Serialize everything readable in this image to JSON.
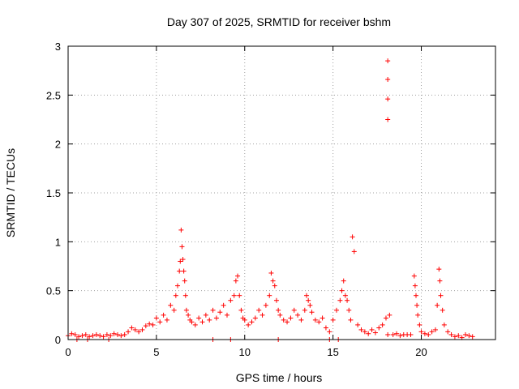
{
  "chart_data": {
    "type": "scatter",
    "title": "Day 307 of 2025, SRMTID for receiver bshm",
    "xlabel": "GPS time / hours",
    "ylabel": "SRMTID / TECUs",
    "xlim": [
      0,
      24.2
    ],
    "ylim": [
      0,
      3
    ],
    "grid": true,
    "marker": "+",
    "marker_color": "#ff0000",
    "x_ticks": [
      {
        "value": 0,
        "label": "0"
      },
      {
        "value": 5,
        "label": "5"
      },
      {
        "value": 10,
        "label": "10"
      },
      {
        "value": 15,
        "label": "15"
      },
      {
        "value": 20,
        "label": "20"
      }
    ],
    "y_ticks": [
      {
        "value": 0,
        "label": "0"
      },
      {
        "value": 0.5,
        "label": "0.5"
      },
      {
        "value": 1,
        "label": "1"
      },
      {
        "value": 1.5,
        "label": "1.5"
      },
      {
        "value": 2,
        "label": "2"
      },
      {
        "value": 2.5,
        "label": "2.5"
      },
      {
        "value": 3,
        "label": "3"
      }
    ],
    "series": [
      {
        "name": "bshm",
        "x": [
          0.0,
          0.2,
          0.4,
          0.6,
          0.8,
          1.0,
          1.2,
          1.4,
          1.6,
          1.8,
          2.0,
          2.2,
          2.4,
          2.6,
          2.8,
          3.0,
          3.2,
          3.4,
          3.6,
          3.8,
          4.0,
          4.2,
          4.4,
          4.6,
          4.8,
          5.0,
          5.2,
          5.4,
          5.6,
          5.8,
          6.0,
          6.1,
          6.2,
          6.3,
          6.35,
          6.4,
          6.45,
          6.5,
          6.55,
          6.6,
          6.65,
          6.7,
          6.8,
          6.9,
          7.0,
          7.2,
          7.4,
          7.6,
          7.8,
          8.0,
          8.2,
          8.4,
          8.6,
          8.8,
          9.0,
          9.2,
          9.4,
          9.5,
          9.6,
          9.7,
          9.8,
          9.9,
          10.0,
          10.2,
          10.4,
          10.6,
          10.8,
          11.0,
          11.2,
          11.4,
          11.5,
          11.6,
          11.7,
          11.8,
          11.9,
          12.0,
          12.2,
          12.4,
          12.6,
          12.8,
          13.0,
          13.2,
          13.4,
          13.5,
          13.6,
          13.7,
          13.8,
          14.0,
          14.2,
          14.4,
          14.6,
          14.8,
          15.0,
          15.2,
          15.4,
          15.5,
          15.6,
          15.7,
          15.8,
          15.9,
          16.0,
          16.1,
          16.2,
          16.4,
          16.6,
          16.8,
          17.0,
          17.2,
          17.4,
          17.6,
          17.8,
          18.0,
          18.1,
          18.2,
          18.1,
          18.1,
          18.1,
          18.1,
          18.4,
          18.6,
          18.8,
          19.0,
          19.2,
          19.4,
          19.6,
          19.65,
          19.7,
          19.75,
          19.8,
          19.9,
          20.0,
          20.2,
          20.4,
          20.6,
          20.8,
          20.9,
          21.0,
          21.05,
          21.1,
          21.2,
          21.3,
          21.5,
          21.7,
          21.9,
          22.1,
          22.3,
          22.5,
          22.7,
          22.9,
          0.5,
          1.1,
          2.3,
          8.2,
          9.2,
          11.9,
          14.8,
          15.3
        ],
        "y": [
          0.04,
          0.06,
          0.05,
          0.03,
          0.04,
          0.05,
          0.03,
          0.04,
          0.05,
          0.04,
          0.03,
          0.05,
          0.04,
          0.06,
          0.05,
          0.04,
          0.05,
          0.08,
          0.12,
          0.1,
          0.08,
          0.1,
          0.14,
          0.16,
          0.15,
          0.22,
          0.18,
          0.25,
          0.2,
          0.35,
          0.3,
          0.45,
          0.55,
          0.7,
          0.8,
          1.12,
          0.95,
          0.82,
          0.7,
          0.6,
          0.45,
          0.3,
          0.25,
          0.2,
          0.18,
          0.15,
          0.22,
          0.18,
          0.25,
          0.2,
          0.3,
          0.22,
          0.28,
          0.35,
          0.25,
          0.4,
          0.45,
          0.6,
          0.65,
          0.45,
          0.3,
          0.22,
          0.2,
          0.15,
          0.18,
          0.22,
          0.3,
          0.25,
          0.35,
          0.45,
          0.68,
          0.6,
          0.55,
          0.4,
          0.3,
          0.25,
          0.2,
          0.18,
          0.22,
          0.3,
          0.25,
          0.2,
          0.3,
          0.45,
          0.4,
          0.35,
          0.28,
          0.2,
          0.18,
          0.22,
          0.12,
          0.08,
          0.2,
          0.3,
          0.4,
          0.5,
          0.6,
          0.45,
          0.4,
          0.3,
          0.2,
          1.05,
          0.9,
          0.15,
          0.1,
          0.08,
          0.06,
          0.1,
          0.07,
          0.12,
          0.15,
          0.22,
          2.85,
          0.25,
          2.66,
          2.46,
          2.25,
          0.05,
          0.05,
          0.06,
          0.04,
          0.05,
          0.05,
          0.05,
          0.65,
          0.55,
          0.45,
          0.35,
          0.25,
          0.15,
          0.08,
          0.06,
          0.05,
          0.08,
          0.1,
          0.35,
          0.72,
          0.6,
          0.45,
          0.3,
          0.15,
          0.08,
          0.05,
          0.03,
          0.04,
          0.02,
          0.05,
          0.04,
          0.03,
          0.0,
          0.0,
          0.0,
          0.0,
          0.0,
          0.0,
          0.0,
          0.0
        ]
      }
    ]
  }
}
